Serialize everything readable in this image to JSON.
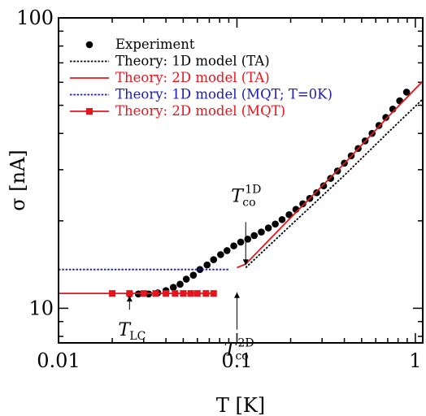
{
  "chart_data": {
    "type": "scatter",
    "xscale": "log",
    "yscale": "log",
    "xlim": [
      0.01,
      1.1
    ],
    "ylim": [
      7.6,
      100
    ],
    "xlabel": "T [K]",
    "ylabel": "σ [nA]",
    "x_ticks": [
      {
        "value": 0.01,
        "label": "0.01"
      },
      {
        "value": 0.1,
        "label": "0.1"
      },
      {
        "value": 1,
        "label": "1"
      }
    ],
    "y_ticks": [
      {
        "value": 10,
        "label": "10"
      },
      {
        "value": 100,
        "label": "100"
      }
    ],
    "legend_position": "top-left",
    "series": [
      {
        "name": "Experiment",
        "kind": "markers",
        "marker": "circle",
        "color": "#000000",
        "points": [
          [
            0.025,
            11.2
          ],
          [
            0.028,
            11.2
          ],
          [
            0.032,
            11.2
          ],
          [
            0.036,
            11.3
          ],
          [
            0.04,
            11.5
          ],
          [
            0.044,
            11.8
          ],
          [
            0.048,
            12.1
          ],
          [
            0.052,
            12.6
          ],
          [
            0.057,
            13.0
          ],
          [
            0.062,
            13.6
          ],
          [
            0.068,
            14.1
          ],
          [
            0.074,
            14.7
          ],
          [
            0.081,
            15.3
          ],
          [
            0.088,
            15.8
          ],
          [
            0.096,
            16.4
          ],
          [
            0.105,
            16.9
          ],
          [
            0.115,
            17.3
          ],
          [
            0.125,
            17.8
          ],
          [
            0.137,
            18.3
          ],
          [
            0.15,
            18.9
          ],
          [
            0.164,
            19.5
          ],
          [
            0.179,
            20.2
          ],
          [
            0.196,
            21.0
          ],
          [
            0.214,
            21.9
          ],
          [
            0.234,
            22.9
          ],
          [
            0.256,
            23.9
          ],
          [
            0.28,
            25.0
          ],
          [
            0.306,
            26.4
          ],
          [
            0.335,
            28.0
          ],
          [
            0.366,
            29.7
          ],
          [
            0.4,
            31.6
          ],
          [
            0.437,
            33.5
          ],
          [
            0.478,
            35.5
          ],
          [
            0.523,
            37.7
          ],
          [
            0.572,
            40.0
          ],
          [
            0.625,
            42.6
          ],
          [
            0.683,
            45.4
          ],
          [
            0.747,
            48.5
          ],
          [
            0.817,
            51.8
          ],
          [
            0.893,
            55.5
          ]
        ]
      },
      {
        "name": "Theory: 1D model (TA)",
        "kind": "line",
        "dash": "dotted",
        "color": "#000000",
        "points": [
          [
            0.112,
            13.8
          ],
          [
            0.2,
            19.3
          ],
          [
            0.4,
            28.7
          ],
          [
            0.7,
            40.2
          ],
          [
            1.1,
            52.5
          ]
        ]
      },
      {
        "name": "Theory: 2D model (TA)",
        "kind": "line",
        "dash": "solid",
        "color": "#e8141c",
        "points": [
          [
            0.1,
            13.8
          ],
          [
            0.112,
            14.2
          ],
          [
            0.2,
            20.5
          ],
          [
            0.4,
            31.5
          ],
          [
            0.7,
            45.5
          ],
          [
            1.1,
            60.5
          ]
        ]
      },
      {
        "name": "Theory: 1D model (MQT; T=0K)",
        "kind": "line",
        "dash": "dotted",
        "color": "#1a1ab0",
        "points": [
          [
            0.01,
            13.6
          ],
          [
            0.09,
            13.6
          ]
        ]
      },
      {
        "name": "Theory: 2D model (MQT)",
        "kind": "line-markers",
        "marker": "square",
        "color": "#e8141c",
        "points": [
          [
            0.01,
            11.25
          ],
          [
            0.02,
            11.25
          ],
          [
            0.025,
            11.25
          ],
          [
            0.03,
            11.25
          ],
          [
            0.035,
            11.25
          ],
          [
            0.04,
            11.25
          ],
          [
            0.045,
            11.25
          ],
          [
            0.05,
            11.25
          ],
          [
            0.055,
            11.25
          ],
          [
            0.06,
            11.25
          ],
          [
            0.067,
            11.25
          ],
          [
            0.074,
            11.25
          ]
        ],
        "marker_x": [
          0.02,
          0.025,
          0.03,
          0.035,
          0.04,
          0.045,
          0.05,
          0.055,
          0.06,
          0.067,
          0.074
        ]
      }
    ],
    "annotations": [
      {
        "id": "lc",
        "main": "T",
        "sub": "LC",
        "sup": "",
        "x": 0.025,
        "y": 11.25
      },
      {
        "id": "co2d",
        "main": "T",
        "sub": "co",
        "sup": "2D",
        "x": 0.1,
        "y": 11.5
      },
      {
        "id": "co1d",
        "main": "T",
        "sub": "co",
        "sup": "1D",
        "x": 0.112,
        "y": 13.9
      }
    ]
  }
}
